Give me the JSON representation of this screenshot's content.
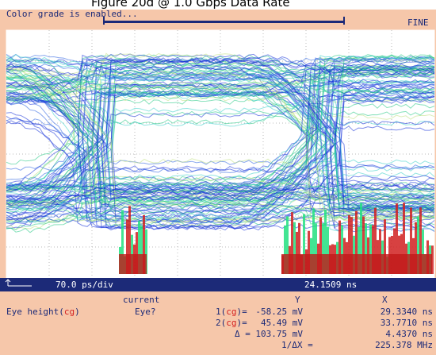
{
  "figure_title": "Figure 20d @ 1.0 Gbps Data Rate",
  "status": {
    "message": "Color grade is enabled...",
    "mode": "FINE"
  },
  "time_bar": {
    "timebase": "70.0 ps/div",
    "position": "24.1509 ns"
  },
  "measurement": {
    "name_prefix": "Eye height(",
    "name_tag": "cg",
    "name_suffix": ")",
    "column_header": "current",
    "result": "Eye?"
  },
  "markers": {
    "header_y": "Y",
    "header_x": "X",
    "rows": [
      {
        "prefix": "1(",
        "tag": "cg",
        "suffix": ")=",
        "y": "-58.25 mV",
        "x": "29.3340 ns"
      },
      {
        "prefix": "2(",
        "tag": "cg",
        "suffix": ")=",
        "y": "45.49 mV",
        "x": "33.7710 ns"
      },
      {
        "prefix": "Δ =",
        "y": "103.75 mV",
        "x": "4.4370 ns"
      },
      {
        "prefix": "1/ΔX =",
        "x": "225.378 MHz"
      }
    ]
  }
}
